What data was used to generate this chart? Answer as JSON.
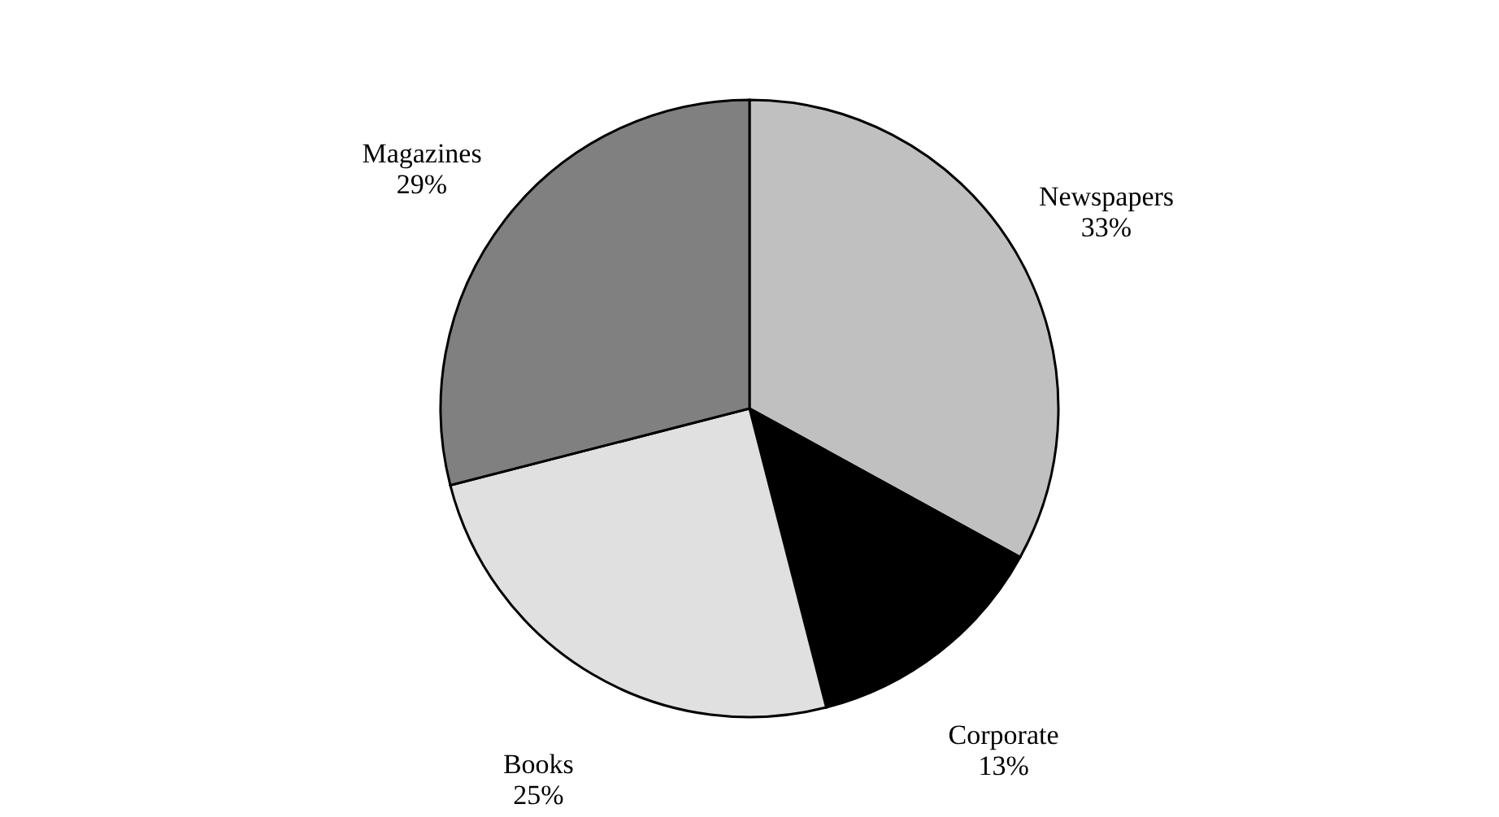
{
  "chart_data": {
    "type": "pie",
    "categories": [
      "Newspapers",
      "Corporate",
      "Books",
      "Magazines"
    ],
    "values": [
      33,
      13,
      25,
      29
    ],
    "colors": [
      "#c0c0c0",
      "#000000",
      "#e0e0e0",
      "#808080"
    ],
    "value_labels": [
      "33%",
      "13%",
      "25%",
      "29%"
    ],
    "legend": false
  }
}
